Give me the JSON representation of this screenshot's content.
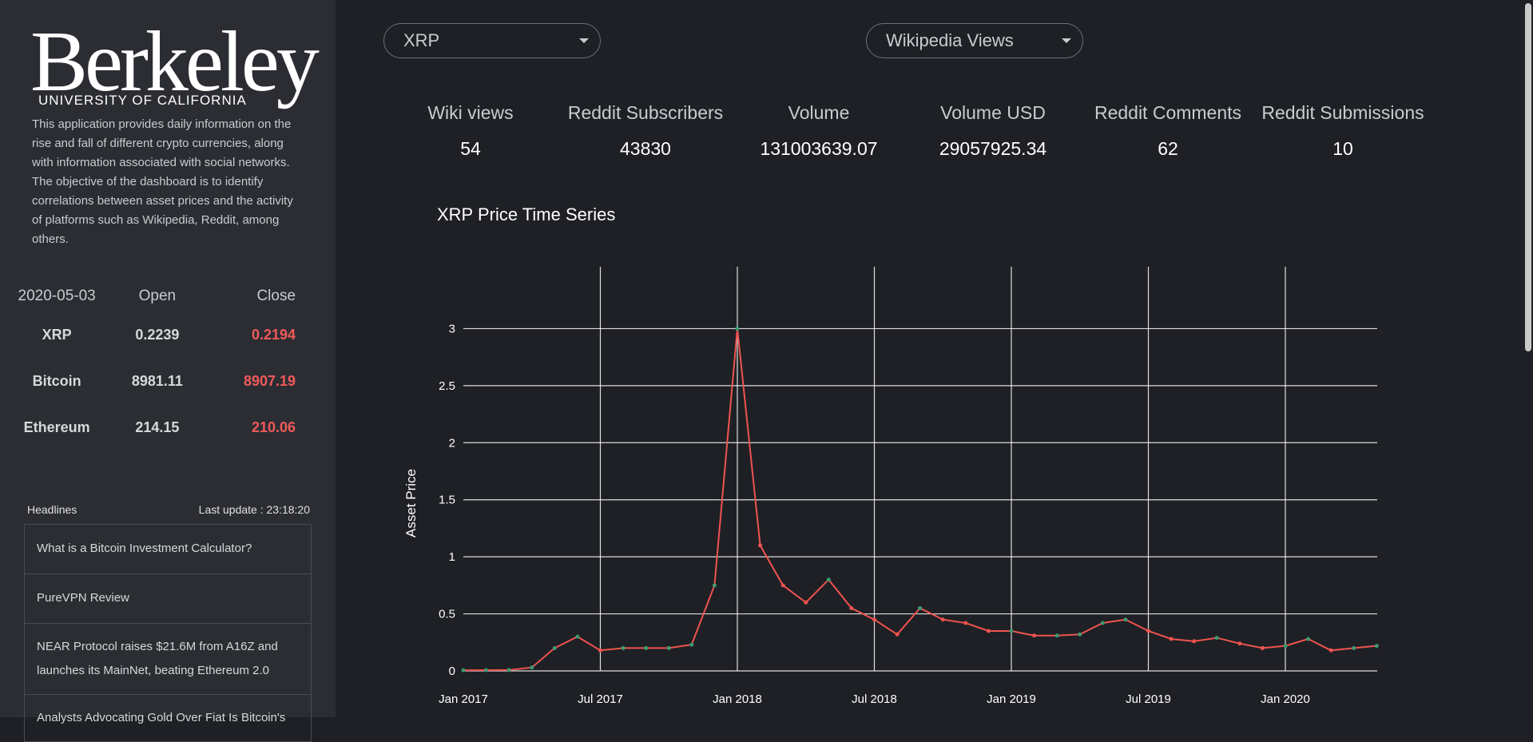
{
  "sidebar": {
    "logo_main": "Berkeley",
    "logo_sub": "UNIVERSITY OF CALIFORNIA",
    "description": "This application provides daily information on the rise and fall of different crypto currencies, along with information associated with social networks. The objective of the dashboard is to identify correlations between asset prices and the activity of platforms such as Wikipedia, Reddit, among others.",
    "price_table": {
      "date": "2020-05-03",
      "open_label": "Open",
      "close_label": "Close",
      "rows": [
        {
          "name": "XRP",
          "open": "0.2239",
          "close": "0.2194"
        },
        {
          "name": "Bitcoin",
          "open": "8981.11",
          "close": "8907.19"
        },
        {
          "name": "Ethereum",
          "open": "214.15",
          "close": "210.06"
        }
      ]
    },
    "headlines": {
      "title": "Headlines",
      "last_update": "Last update : 23:18:20",
      "items": [
        "What is a Bitcoin Investment Calculator?",
        "PureVPN Review",
        "NEAR Protocol raises $21.6M from A16Z and launches its MainNet, beating Ethereum 2.0",
        "Analysts Advocating Gold Over Fiat Is Bitcoin's"
      ]
    }
  },
  "controls": {
    "asset_select": "XRP",
    "metric_select": "Wikipedia Views"
  },
  "stats": [
    {
      "label": "Wiki views",
      "value": "54"
    },
    {
      "label": "Reddit Subscribers",
      "value": "43830"
    },
    {
      "label": "Volume",
      "value": "131003639.07"
    },
    {
      "label": "Volume USD",
      "value": "29057925.34"
    },
    {
      "label": "Reddit Comments",
      "value": "62"
    },
    {
      "label": "Reddit Submissions",
      "value": "10"
    }
  ],
  "colors": {
    "down": "#ef5350",
    "up": "#3d9970",
    "close_text": "#f05a5a"
  },
  "chart_data": {
    "type": "line",
    "title": "XRP Price Time Series",
    "xlabel": "",
    "ylabel": "Asset Price",
    "x_ticks": [
      "Jan 2017",
      "Jul 2017",
      "Jan 2018",
      "Jul 2018",
      "Jan 2019",
      "Jul 2019",
      "Jan 2020"
    ],
    "y_ticks": [
      "0",
      "0.5",
      "1",
      "1.5",
      "2",
      "2.5",
      "3"
    ],
    "ylim": [
      0,
      3.5
    ],
    "grid": true,
    "series": [
      {
        "x": [
          "2017-01",
          "2017-02",
          "2017-03",
          "2017-04",
          "2017-05",
          "2017-06",
          "2017-07",
          "2017-08",
          "2017-09",
          "2017-10",
          "2017-11",
          "2017-12",
          "2018-01",
          "2018-02",
          "2018-03",
          "2018-04",
          "2018-05",
          "2018-06",
          "2018-07",
          "2018-08",
          "2018-09",
          "2018-10",
          "2018-11",
          "2018-12",
          "2019-01",
          "2019-02",
          "2019-03",
          "2019-04",
          "2019-05",
          "2019-06",
          "2019-07",
          "2019-08",
          "2019-09",
          "2019-10",
          "2019-11",
          "2019-12",
          "2020-01",
          "2020-02",
          "2020-03",
          "2020-04",
          "2020-05"
        ],
        "values": [
          0.006,
          0.007,
          0.008,
          0.03,
          0.2,
          0.3,
          0.18,
          0.2,
          0.2,
          0.2,
          0.23,
          0.75,
          3.0,
          1.1,
          0.75,
          0.6,
          0.8,
          0.55,
          0.45,
          0.32,
          0.55,
          0.45,
          0.42,
          0.35,
          0.35,
          0.31,
          0.31,
          0.32,
          0.42,
          0.45,
          0.35,
          0.28,
          0.26,
          0.29,
          0.24,
          0.2,
          0.22,
          0.28,
          0.18,
          0.2,
          0.22
        ]
      }
    ]
  }
}
